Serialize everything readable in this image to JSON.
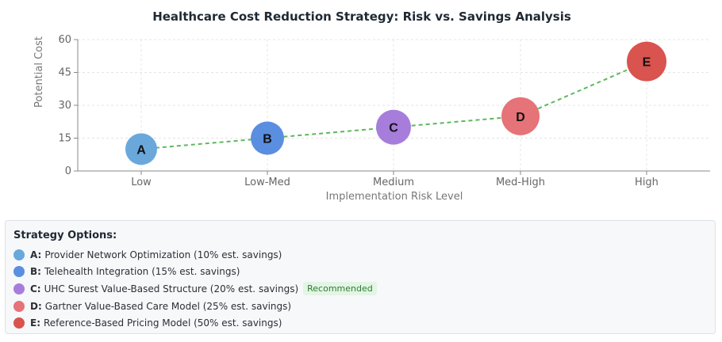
{
  "chart_data": {
    "type": "scatter",
    "title": "Healthcare Cost Reduction Strategy: Risk vs. Savings Analysis",
    "xlabel": "Implementation Risk Level",
    "ylabel": "Potential Cost",
    "categories": [
      "Low",
      "Low-Med",
      "Medium",
      "Med-High",
      "High"
    ],
    "yticks": [
      0,
      15,
      30,
      45,
      60
    ],
    "ylim": [
      0,
      60
    ],
    "grid": true,
    "points": [
      {
        "label": "A",
        "x": "Low",
        "y": 10,
        "color": "#6aa8dc"
      },
      {
        "label": "B",
        "x": "Low-Med",
        "y": 15,
        "color": "#5a8ee0"
      },
      {
        "label": "C",
        "x": "Medium",
        "y": 20,
        "color": "#a77ddb"
      },
      {
        "label": "D",
        "x": "Med-High",
        "y": 25,
        "color": "#e57377"
      },
      {
        "label": "E",
        "x": "High",
        "y": 50,
        "color": "#d9534f"
      }
    ],
    "trend_line_color": "#5cb85c"
  },
  "legend": {
    "heading": "Strategy Options:",
    "items": [
      {
        "key": "A:",
        "text": "Provider Network Optimization (10% est. savings)",
        "color": "#6aa8dc"
      },
      {
        "key": "B:",
        "text": "Telehealth Integration (15% est. savings)",
        "color": "#5a8ee0"
      },
      {
        "key": "C:",
        "text": "UHC Surest Value-Based Structure (20% est. savings)",
        "color": "#a77ddb",
        "badge": "Recommended"
      },
      {
        "key": "D:",
        "text": "Gartner Value-Based Care Model (25% est. savings)",
        "color": "#e57377"
      },
      {
        "key": "E:",
        "text": "Reference-Based Pricing Model (50% est. savings)",
        "color": "#d9534f"
      }
    ]
  }
}
